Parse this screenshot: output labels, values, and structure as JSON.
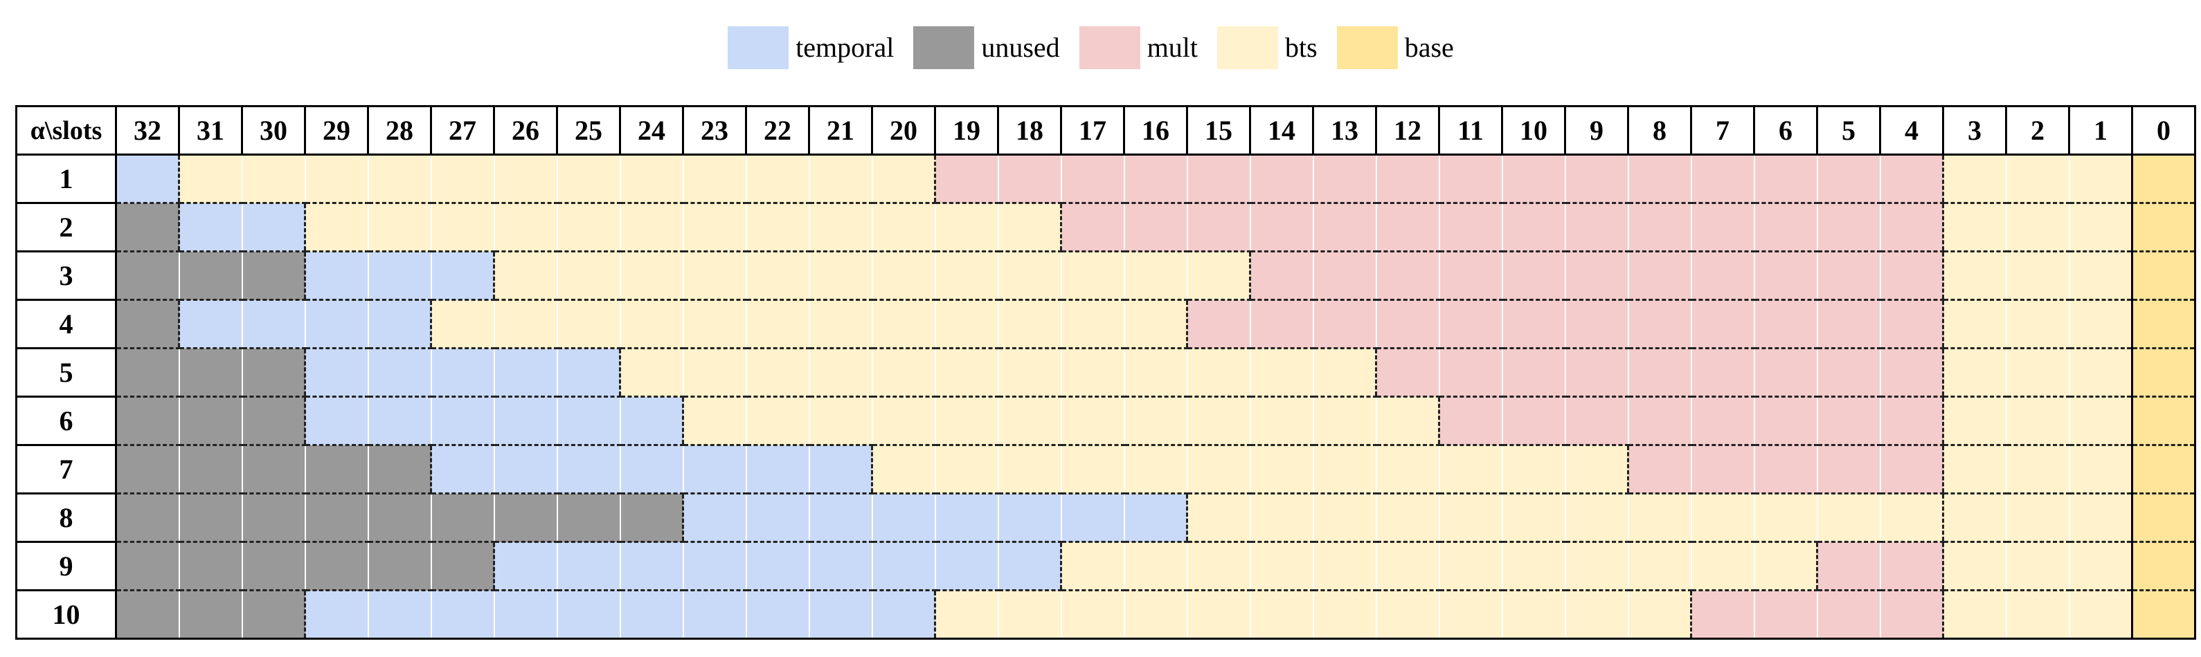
{
  "legend": [
    {
      "key": "temporal",
      "label": "temporal",
      "color": "#c9daf8"
    },
    {
      "key": "unused",
      "label": "unused",
      "color": "#999999"
    },
    {
      "key": "mult",
      "label": "mult",
      "color": "#f4cccc"
    },
    {
      "key": "bts",
      "label": "bts",
      "color": "#fff2cc"
    },
    {
      "key": "base",
      "label": "base",
      "color": "#ffe599"
    }
  ],
  "table": {
    "corner_label": "α\\slots",
    "slots": [
      "32",
      "31",
      "30",
      "29",
      "28",
      "27",
      "26",
      "25",
      "24",
      "23",
      "22",
      "21",
      "20",
      "19",
      "18",
      "17",
      "16",
      "15",
      "14",
      "13",
      "12",
      "11",
      "10",
      "9",
      "8",
      "7",
      "6",
      "5",
      "4",
      "3",
      "2",
      "1",
      "0"
    ],
    "rows": [
      {
        "label": "1",
        "segments": [
          [
            "temporal",
            1
          ],
          [
            "bts",
            12
          ],
          [
            "mult",
            16
          ],
          [
            "bts",
            3
          ],
          [
            "base",
            1
          ]
        ]
      },
      {
        "label": "2",
        "segments": [
          [
            "unused",
            1
          ],
          [
            "temporal",
            2
          ],
          [
            "bts",
            12
          ],
          [
            "mult",
            14
          ],
          [
            "bts",
            3
          ],
          [
            "base",
            1
          ]
        ]
      },
      {
        "label": "3",
        "segments": [
          [
            "unused",
            3
          ],
          [
            "temporal",
            3
          ],
          [
            "bts",
            12
          ],
          [
            "mult",
            11
          ],
          [
            "bts",
            3
          ],
          [
            "base",
            1
          ]
        ]
      },
      {
        "label": "4",
        "segments": [
          [
            "unused",
            1
          ],
          [
            "temporal",
            4
          ],
          [
            "bts",
            12
          ],
          [
            "mult",
            12
          ],
          [
            "bts",
            3
          ],
          [
            "base",
            1
          ]
        ]
      },
      {
        "label": "5",
        "segments": [
          [
            "unused",
            3
          ],
          [
            "temporal",
            5
          ],
          [
            "bts",
            12
          ],
          [
            "mult",
            9
          ],
          [
            "bts",
            3
          ],
          [
            "base",
            1
          ]
        ]
      },
      {
        "label": "6",
        "segments": [
          [
            "unused",
            3
          ],
          [
            "temporal",
            6
          ],
          [
            "bts",
            12
          ],
          [
            "mult",
            8
          ],
          [
            "bts",
            3
          ],
          [
            "base",
            1
          ]
        ]
      },
      {
        "label": "7",
        "segments": [
          [
            "unused",
            5
          ],
          [
            "temporal",
            7
          ],
          [
            "bts",
            12
          ],
          [
            "mult",
            5
          ],
          [
            "bts",
            3
          ],
          [
            "base",
            1
          ]
        ]
      },
      {
        "label": "8",
        "segments": [
          [
            "unused",
            9
          ],
          [
            "temporal",
            8
          ],
          [
            "bts",
            12
          ],
          [
            "bts",
            3
          ],
          [
            "base",
            1
          ]
        ]
      },
      {
        "label": "9",
        "segments": [
          [
            "unused",
            6
          ],
          [
            "temporal",
            9
          ],
          [
            "bts",
            12
          ],
          [
            "mult",
            2
          ],
          [
            "bts",
            3
          ],
          [
            "base",
            1
          ]
        ]
      },
      {
        "label": "10",
        "segments": [
          [
            "unused",
            3
          ],
          [
            "temporal",
            10
          ],
          [
            "bts",
            12
          ],
          [
            "mult",
            4
          ],
          [
            "bts",
            3
          ],
          [
            "base",
            1
          ]
        ]
      }
    ]
  }
}
